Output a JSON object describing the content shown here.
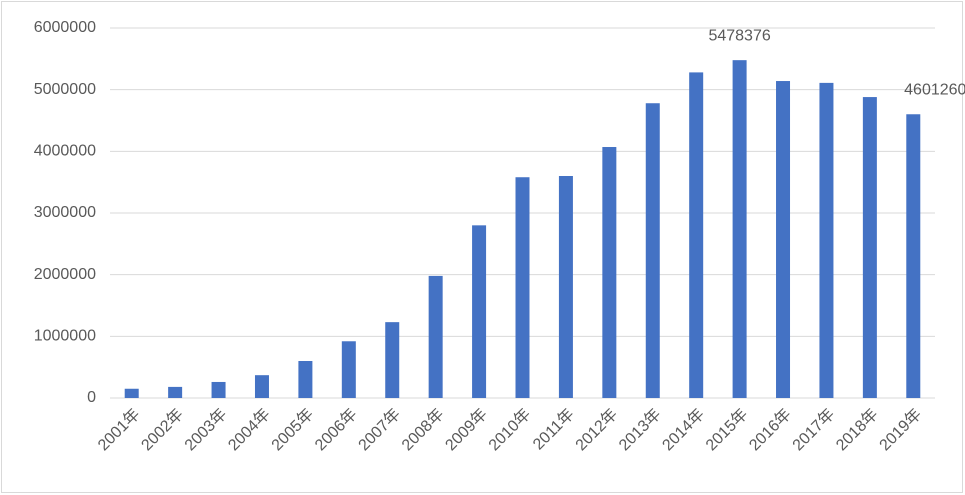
{
  "chart_data": {
    "type": "bar",
    "categories": [
      "2001年",
      "2002年",
      "2003年",
      "2004年",
      "2005年",
      "2006年",
      "2007年",
      "2008年",
      "2009年",
      "2010年",
      "2011年",
      "2012年",
      "2013年",
      "2014年",
      "2015年",
      "2016年",
      "2017年",
      "2018年",
      "2019年"
    ],
    "values": [
      150000,
      180000,
      260000,
      370000,
      600000,
      920000,
      1230000,
      1980000,
      2800000,
      3580000,
      3600000,
      4070000,
      4780000,
      5280000,
      5478376,
      5140000,
      5110000,
      4880000,
      4601260
    ],
    "value_labels": [
      null,
      null,
      null,
      null,
      null,
      null,
      null,
      null,
      null,
      null,
      null,
      null,
      null,
      null,
      "5478376",
      null,
      null,
      null,
      "4601260"
    ],
    "color": "#4472c4",
    "ylim": [
      0,
      6000000
    ],
    "yticks": [
      0,
      1000000,
      2000000,
      3000000,
      4000000,
      5000000,
      6000000
    ],
    "grid": true
  }
}
